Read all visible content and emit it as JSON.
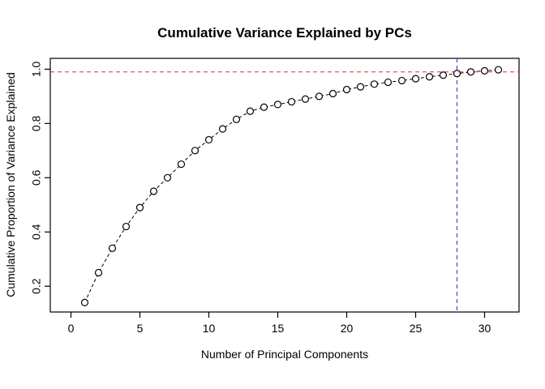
{
  "chart_data": {
    "type": "scatter",
    "title": "Cumulative Variance Explained by PCs",
    "xlabel": "Number of Principal Components",
    "ylabel": "Cumulative Proportion of Variance Explained",
    "x": [
      1,
      2,
      3,
      4,
      5,
      6,
      7,
      8,
      9,
      10,
      11,
      12,
      13,
      14,
      15,
      16,
      17,
      18,
      19,
      20,
      21,
      22,
      23,
      24,
      25,
      26,
      27,
      28,
      29,
      30,
      31
    ],
    "y": [
      0.14,
      0.25,
      0.34,
      0.42,
      0.49,
      0.55,
      0.6,
      0.65,
      0.7,
      0.74,
      0.78,
      0.815,
      0.845,
      0.86,
      0.87,
      0.88,
      0.89,
      0.9,
      0.91,
      0.925,
      0.935,
      0.945,
      0.952,
      0.958,
      0.965,
      0.972,
      0.978,
      0.984,
      0.99,
      0.994,
      0.998
    ],
    "xlim": [
      -1.5,
      32.5
    ],
    "ylim": [
      0.105,
      1.04
    ],
    "x_ticks": [
      0,
      5,
      10,
      15,
      20,
      25,
      30
    ],
    "x_tick_labels": [
      "0",
      "5",
      "10",
      "15",
      "20",
      "25",
      "30"
    ],
    "y_ticks": [
      0.2,
      0.4,
      0.6,
      0.8,
      1.0
    ],
    "y_tick_labels": [
      "0.2",
      "0.4",
      "0.6",
      "0.8",
      "1.0"
    ],
    "grid": false,
    "legend": null,
    "marker": "open-circle",
    "line_style": "dashed",
    "series_color": "#000000",
    "hline": {
      "y": 0.99,
      "color": "#e03131",
      "style": "dashed"
    },
    "vline": {
      "x": 28,
      "color": "#3b3bc8",
      "style": "dashed"
    },
    "axis_color": "#000000",
    "background_color": "#ffffff"
  }
}
